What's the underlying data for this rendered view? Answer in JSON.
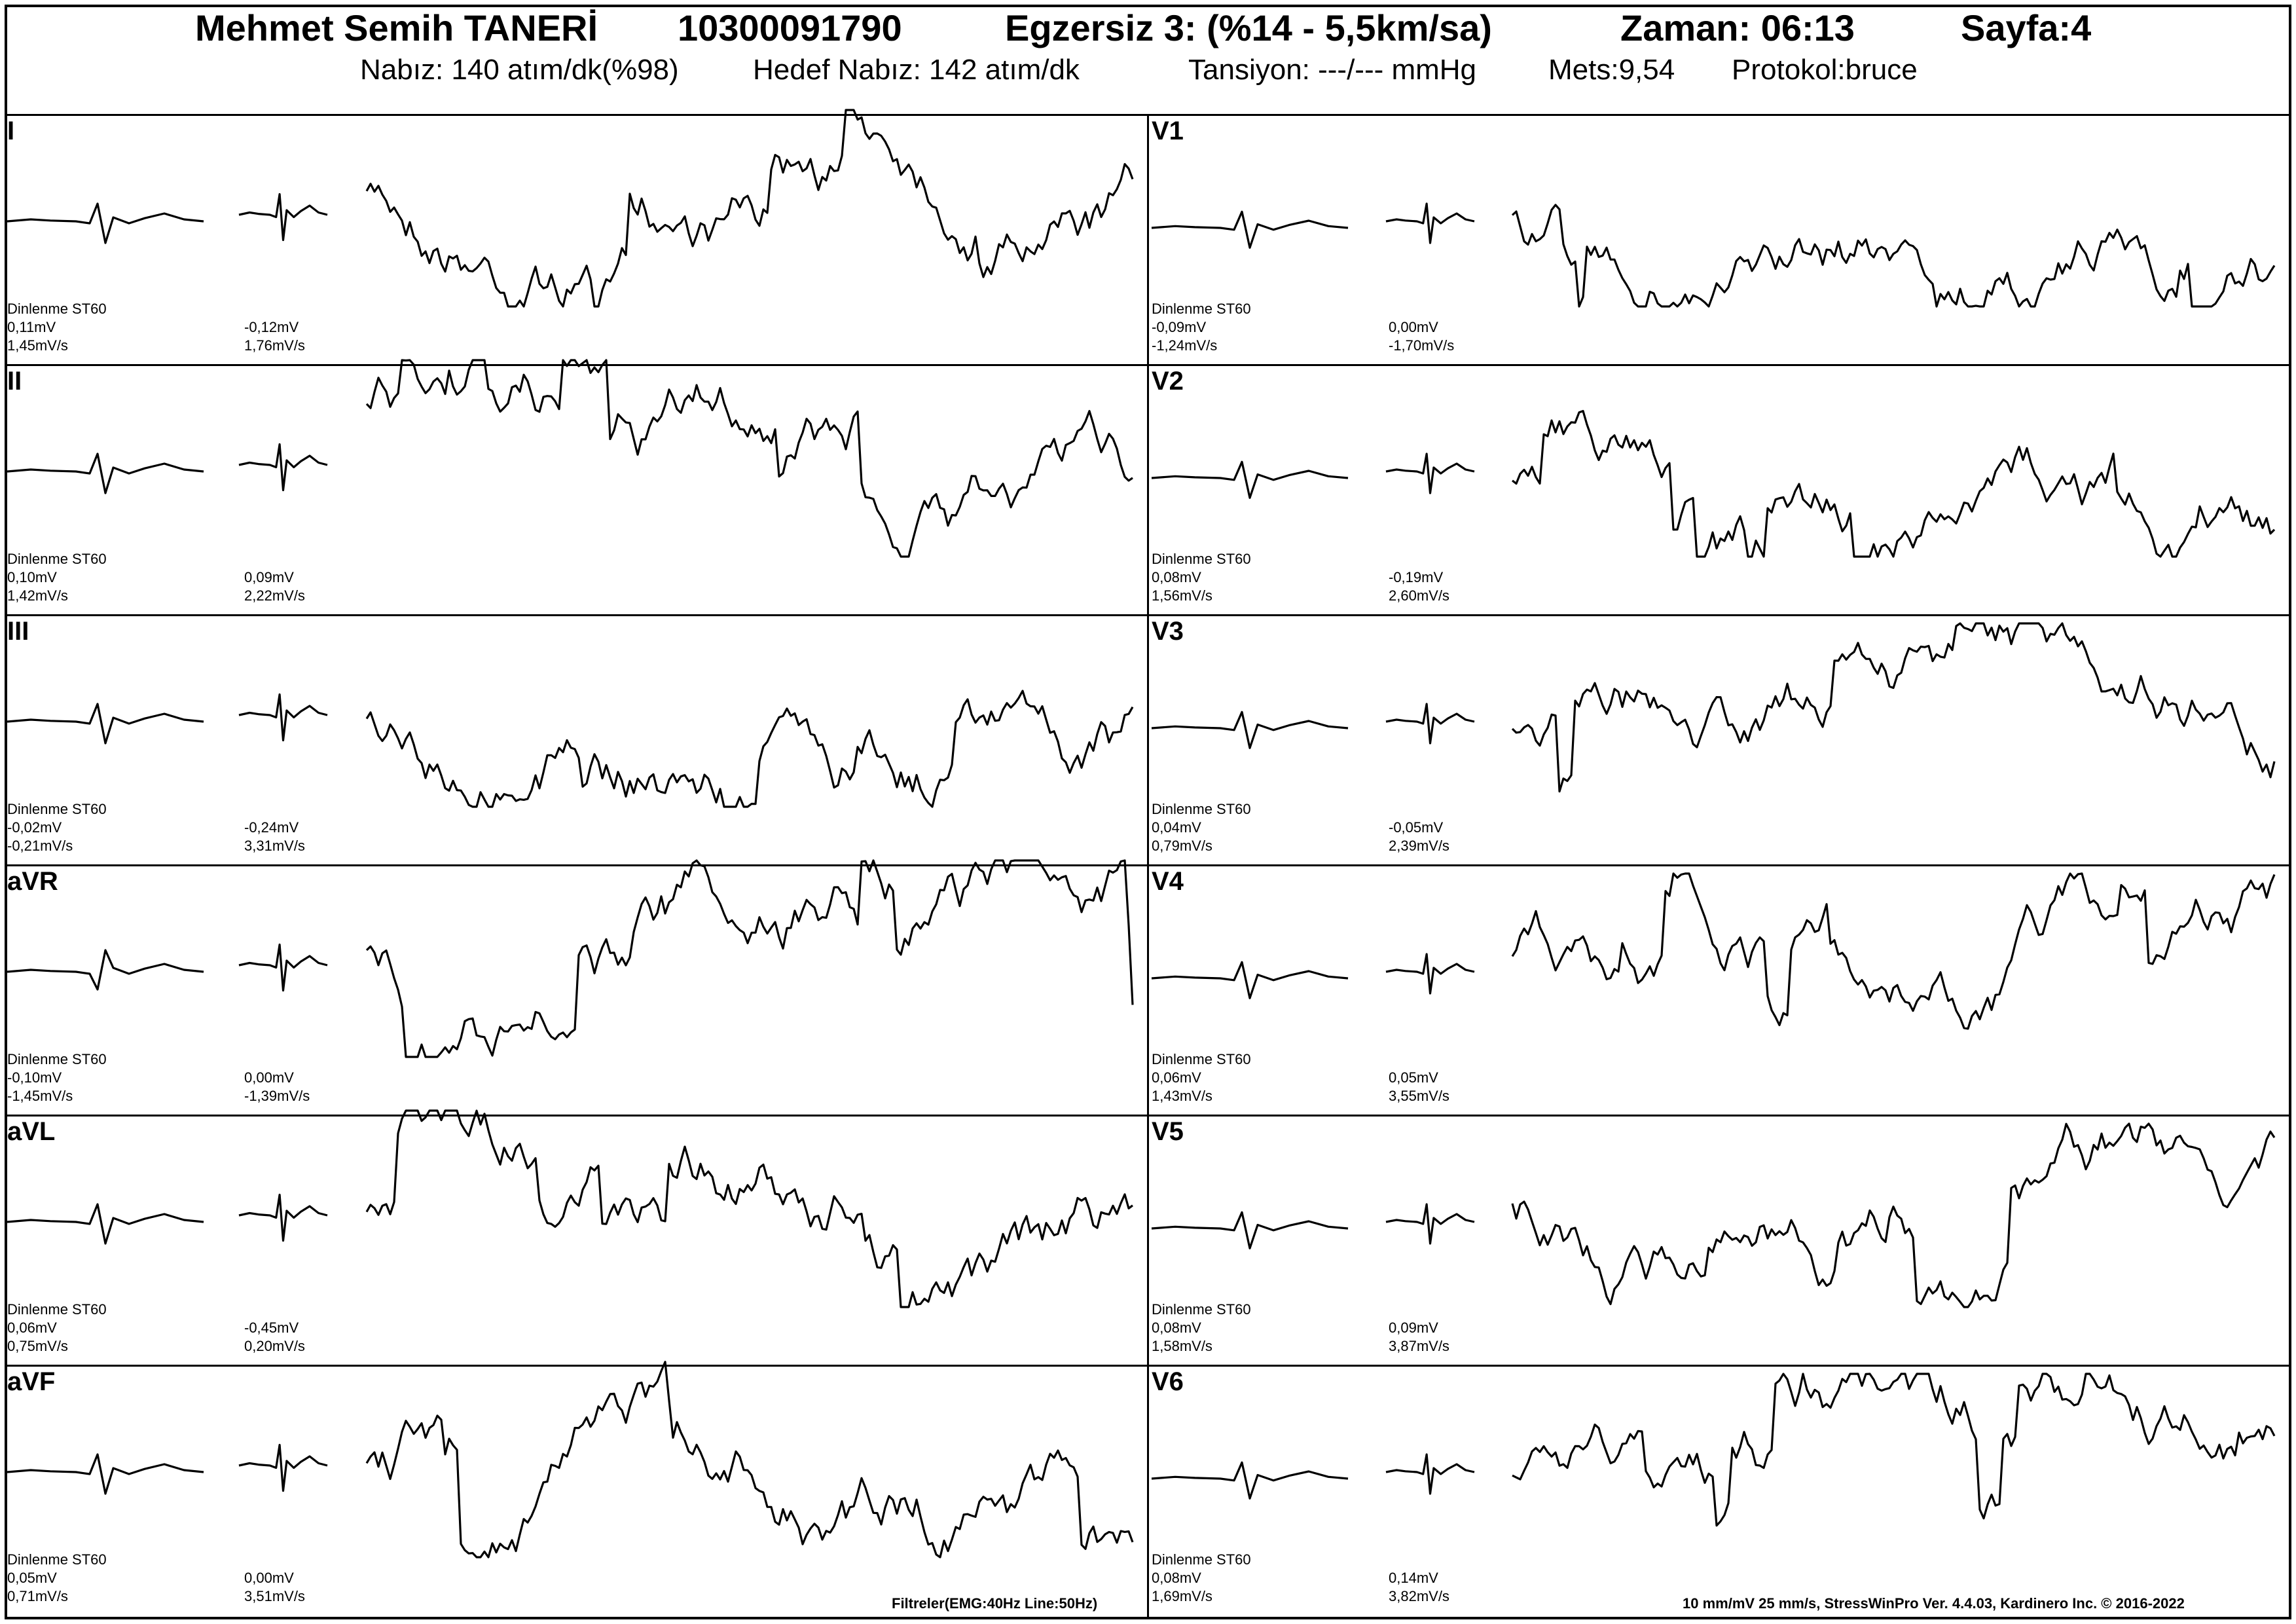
{
  "header": {
    "patient_name": "Mehmet Semih  TANERİ",
    "patient_id": "10300091790",
    "stage": "Egzersiz 3: (%14 - 5,5km/sa)",
    "time": "Zaman: 06:13",
    "page": "Sayfa:4",
    "heart_rate": "Nabız: 140 atım/dk(%98)",
    "target_hr": "Hedef Nabız: 142 atım/dk",
    "blood_pressure": "Tansiyon: ---/--- mmHg",
    "mets": "Mets:9,54",
    "protocol": "Protokol:bruce"
  },
  "leads_left": [
    {
      "name": "I",
      "rest_label": "Dinlenme ST60",
      "rest_mv": "0,11mV",
      "rest_slope": "1,45mV/s",
      "cur_mv": "-0,12mV",
      "cur_slope": "1,76mV/s"
    },
    {
      "name": "II",
      "rest_label": "Dinlenme ST60",
      "rest_mv": "0,10mV",
      "rest_slope": "1,42mV/s",
      "cur_mv": "0,09mV",
      "cur_slope": "2,22mV/s"
    },
    {
      "name": "III",
      "rest_label": "Dinlenme ST60",
      "rest_mv": "-0,02mV",
      "rest_slope": "-0,21mV/s",
      "cur_mv": "-0,24mV",
      "cur_slope": "3,31mV/s"
    },
    {
      "name": "aVR",
      "rest_label": "Dinlenme ST60",
      "rest_mv": "-0,10mV",
      "rest_slope": "-1,45mV/s",
      "cur_mv": "0,00mV",
      "cur_slope": "-1,39mV/s"
    },
    {
      "name": "aVL",
      "rest_label": "Dinlenme ST60",
      "rest_mv": "0,06mV",
      "rest_slope": "0,75mV/s",
      "cur_mv": "-0,45mV",
      "cur_slope": "0,20mV/s"
    },
    {
      "name": "aVF",
      "rest_label": "Dinlenme ST60",
      "rest_mv": "0,05mV",
      "rest_slope": "0,71mV/s",
      "cur_mv": "0,00mV",
      "cur_slope": "3,51mV/s"
    }
  ],
  "leads_right": [
    {
      "name": "V1",
      "rest_label": "Dinlenme ST60",
      "rest_mv": "-0,09mV",
      "rest_slope": "-1,24mV/s",
      "cur_mv": "0,00mV",
      "cur_slope": "-1,70mV/s"
    },
    {
      "name": "V2",
      "rest_label": "Dinlenme ST60",
      "rest_mv": "0,08mV",
      "rest_slope": "1,56mV/s",
      "cur_mv": "-0,19mV",
      "cur_slope": "2,60mV/s"
    },
    {
      "name": "V3",
      "rest_label": "Dinlenme ST60",
      "rest_mv": "0,04mV",
      "rest_slope": "0,79mV/s",
      "cur_mv": "-0,05mV",
      "cur_slope": "2,39mV/s"
    },
    {
      "name": "V4",
      "rest_label": "Dinlenme ST60",
      "rest_mv": "0,06mV",
      "rest_slope": "1,43mV/s",
      "cur_mv": "0,05mV",
      "cur_slope": "3,55mV/s"
    },
    {
      "name": "V5",
      "rest_label": "Dinlenme ST60",
      "rest_mv": "0,08mV",
      "rest_slope": "1,58mV/s",
      "cur_mv": "0,09mV",
      "cur_slope": "3,87mV/s"
    },
    {
      "name": "V6",
      "rest_label": "Dinlenme ST60",
      "rest_mv": "0,08mV",
      "rest_slope": "1,69mV/s",
      "cur_mv": "0,14mV",
      "cur_slope": "3,82mV/s"
    }
  ],
  "footer": {
    "filters": "Filtreler(EMG:40Hz  Line:50Hz)",
    "settings": "10 mm/mV  25 mm/s,   StressWinPro Ver. 4.4.03,  Kardinero Inc. © 2016-2022"
  }
}
